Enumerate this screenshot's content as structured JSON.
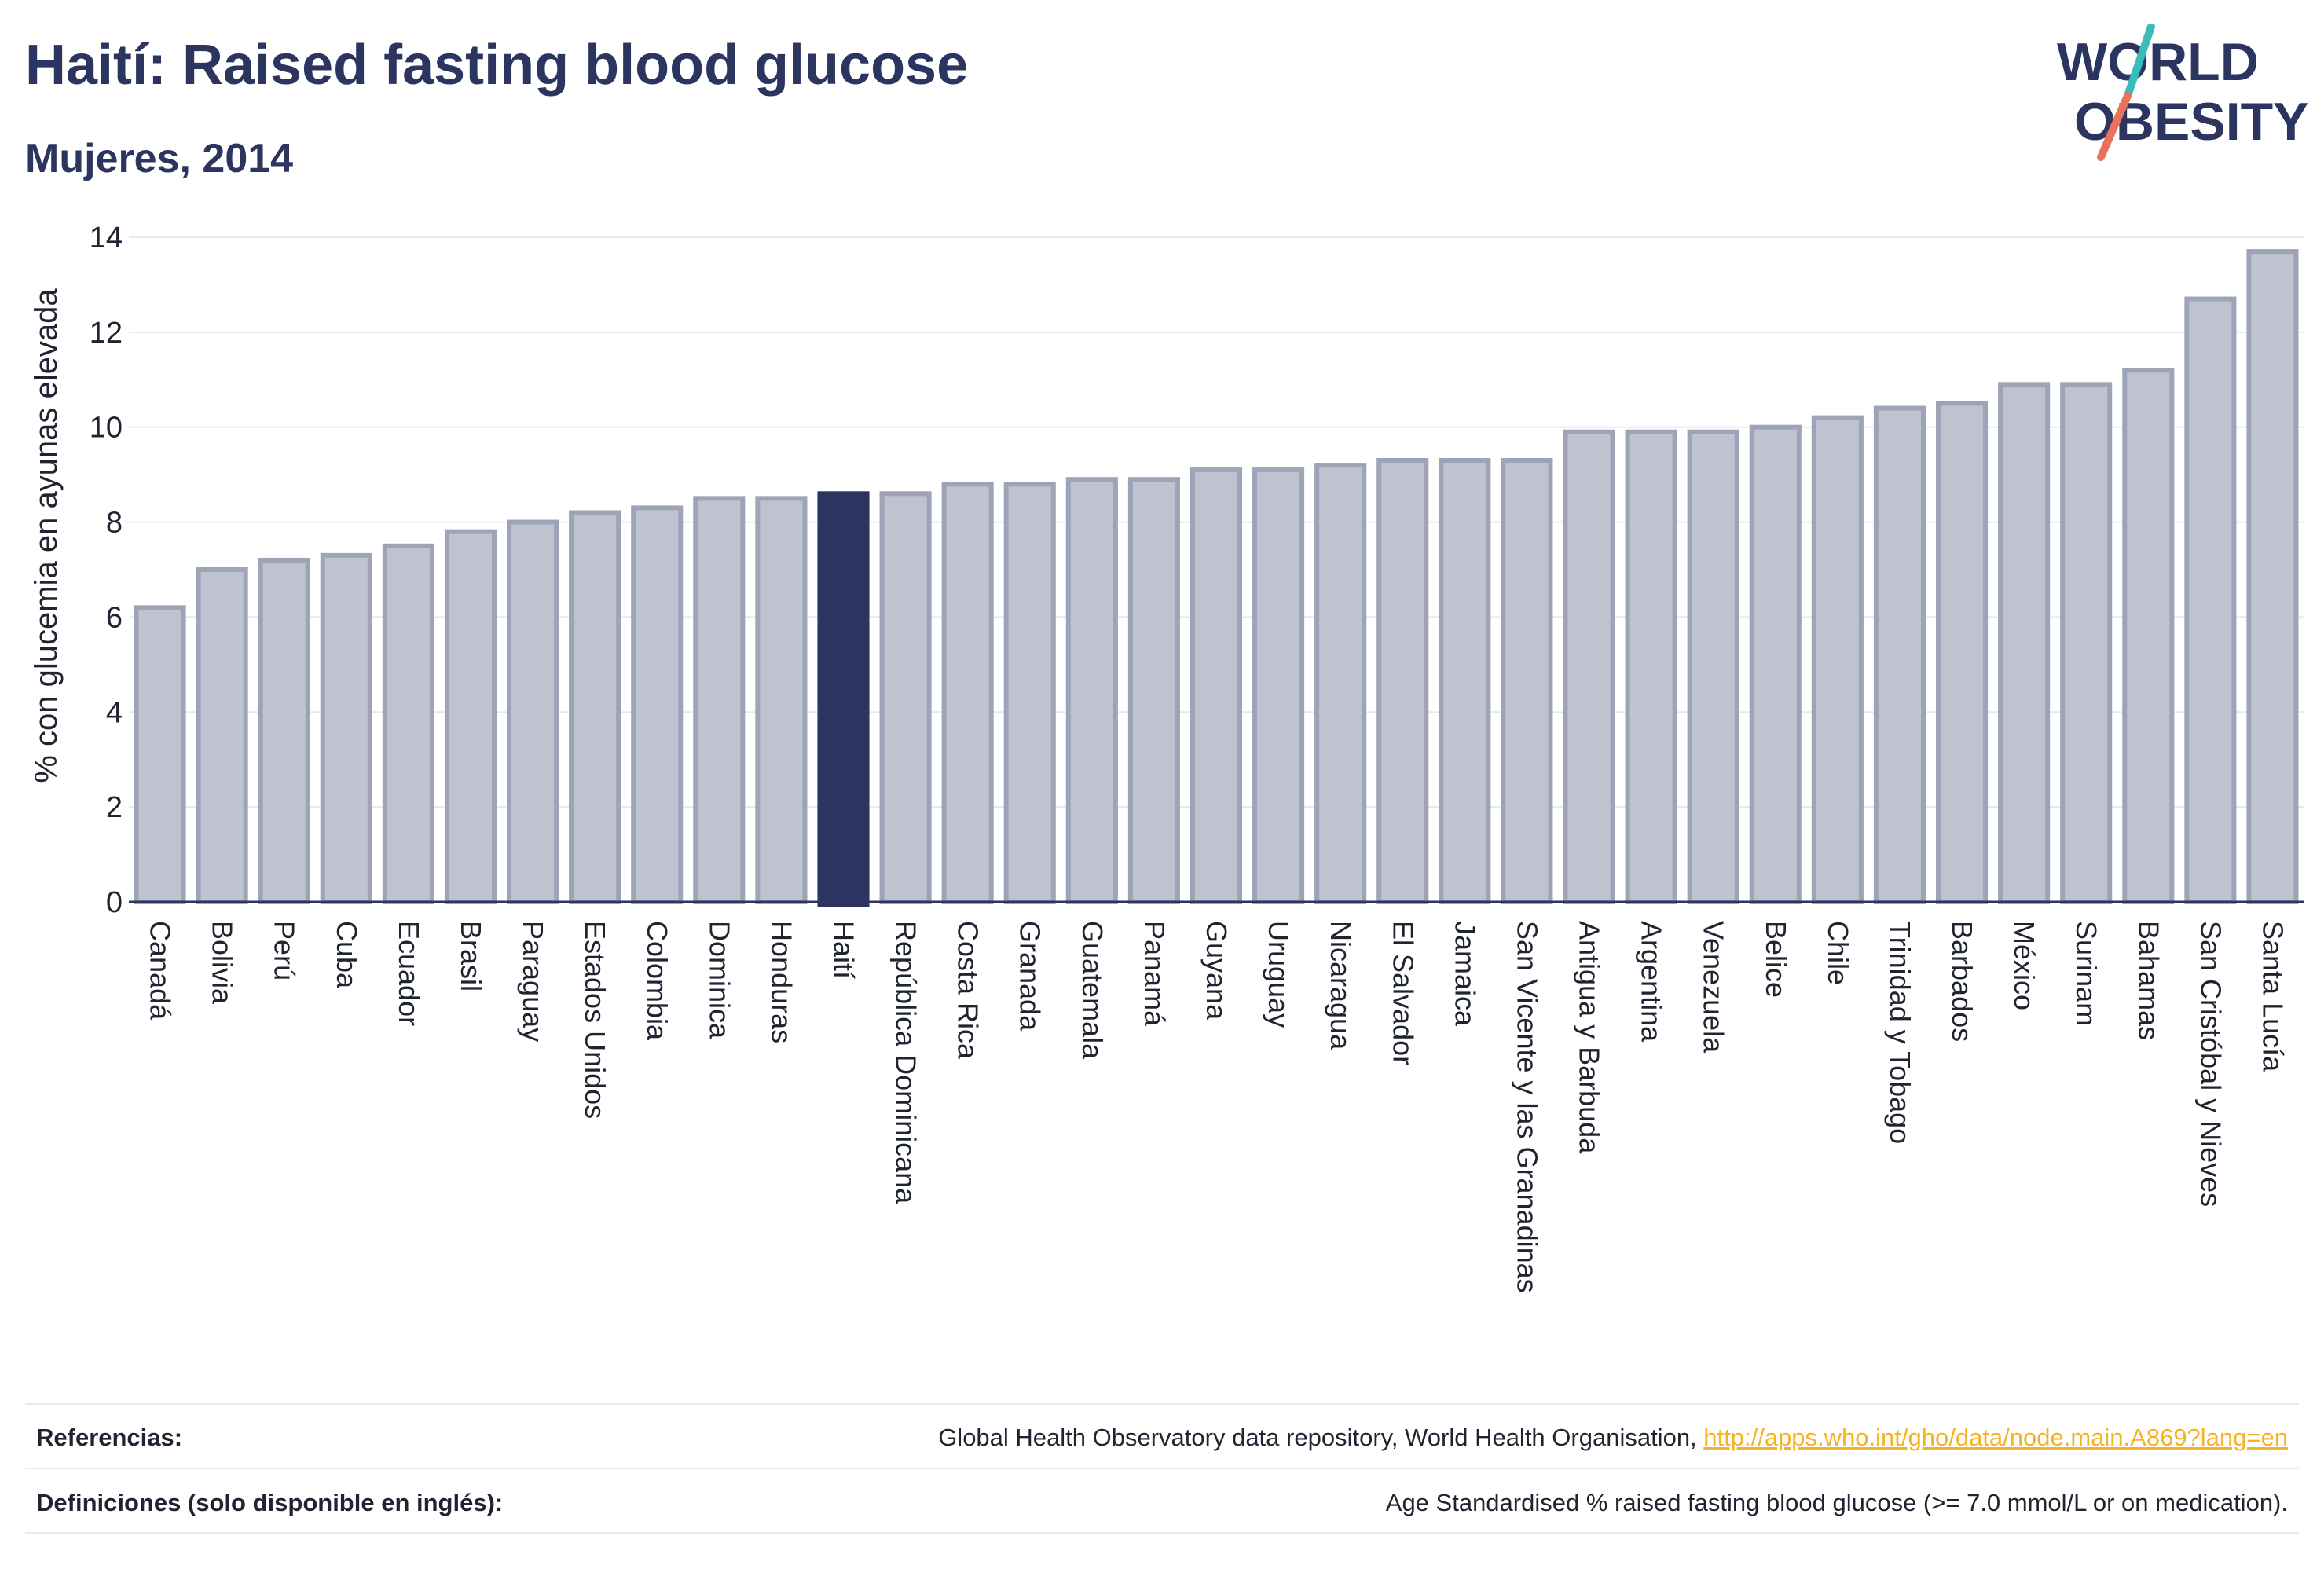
{
  "header": {
    "title": "Haití: Raised fasting blood glucose",
    "subtitle": "Mujeres, 2014",
    "logo_line1": "WORLD",
    "logo_line2": "OBESITY"
  },
  "chart_data": {
    "type": "bar",
    "ylabel": "% con glucemia en ayunas elevada",
    "ylim": [
      0,
      14
    ],
    "yticks": [
      0,
      2,
      4,
      6,
      8,
      10,
      12,
      14
    ],
    "grid": true,
    "highlight": "Haití",
    "categories": [
      "Canadá",
      "Bolivia",
      "Perú",
      "Cuba",
      "Ecuador",
      "Brasil",
      "Paraguay",
      "Estados Unidos",
      "Colombia",
      "Dominica",
      "Honduras",
      "Haití",
      "República Dominicana",
      "Costa Rica",
      "Granada",
      "Guatemala",
      "Panamá",
      "Guyana",
      "Uruguay",
      "Nicaragua",
      "El Salvador",
      "Jamaica",
      "San Vicente y las Granadinas",
      "Antigua y Barbuda",
      "Argentina",
      "Venezuela",
      "Belice",
      "Chile",
      "Trinidad y Tobago",
      "Barbados",
      "México",
      "Surinam",
      "Bahamas",
      "San Cristóbal y Nieves",
      "Santa Lucía"
    ],
    "values": [
      6.2,
      7.0,
      7.2,
      7.3,
      7.5,
      7.8,
      8.0,
      8.2,
      8.3,
      8.5,
      8.5,
      8.6,
      8.6,
      8.8,
      8.8,
      8.9,
      8.9,
      9.1,
      9.1,
      9.2,
      9.3,
      9.3,
      9.3,
      9.9,
      9.9,
      9.9,
      10.0,
      10.2,
      10.4,
      10.5,
      10.9,
      10.9,
      11.2,
      12.7,
      13.7
    ]
  },
  "colors": {
    "bar": "#bfc2cf",
    "bar_border": "#9ea3b8",
    "highlight": "#2b3560",
    "logo_slash_top": "#3bbcb8",
    "logo_slash_bottom": "#e8735a"
  },
  "footer": {
    "references_label": "Referencias:",
    "references_text": "Global Health Observatory data repository, World Health Organisation, ",
    "references_link": "http://apps.who.int/gho/data/node.main.A869?lang=en",
    "definitions_label": "Definiciones (solo disponible en inglés):",
    "definitions_text": "Age Standardised % raised fasting blood glucose (>= 7.0 mmol/L or on medication)."
  }
}
